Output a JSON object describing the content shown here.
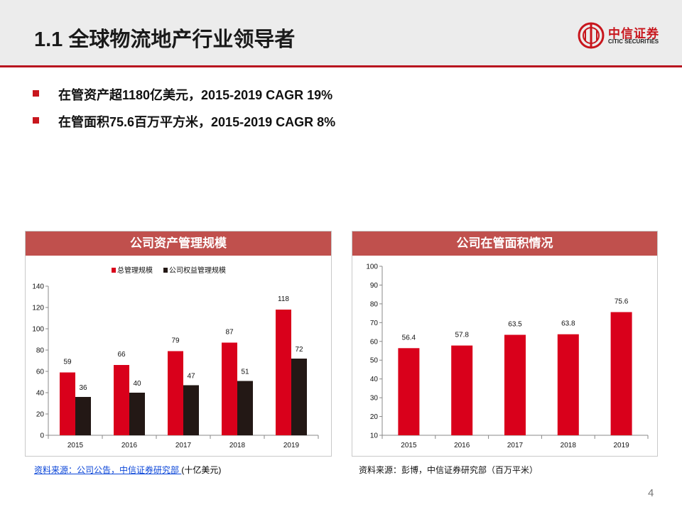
{
  "header": {
    "title": "1.1 全球物流地产行业领导者",
    "logo_cn": "中信证券",
    "logo_en": "CITIC SECURITIES",
    "accent_color": "#c8161d"
  },
  "bullets": [
    "在管资产超1180亿美元，2015-2019 CAGR 19%",
    "在管面积75.6百万平方米，2015-2019 CAGR 8%"
  ],
  "chart_data": [
    {
      "type": "bar",
      "title": "公司资产管理规模",
      "categories": [
        "2015",
        "2016",
        "2017",
        "2018",
        "2019"
      ],
      "series": [
        {
          "name": "总管理规模",
          "values": [
            59,
            66,
            79,
            87,
            118
          ],
          "color": "#d9001b"
        },
        {
          "name": "公司权益管理规模",
          "values": [
            36,
            40,
            47,
            51,
            72
          ],
          "color": "#231815"
        }
      ],
      "ylim": [
        0,
        140
      ],
      "yticks": [
        "0",
        "20",
        "40",
        "60",
        "80",
        "100",
        "120",
        "140"
      ],
      "legend": "top",
      "grid": false
    },
    {
      "type": "bar",
      "title": "公司在管面积情况",
      "categories": [
        "2015",
        "2016",
        "2017",
        "2018",
        "2019"
      ],
      "series": [
        {
          "values": [
            56.4,
            57.8,
            63.5,
            63.8,
            75.6
          ],
          "color": "#d9001b"
        }
      ],
      "value_labels": [
        "56.4",
        "57.8",
        "63.5",
        "63.8",
        "75.6"
      ],
      "ylim": [
        10,
        100
      ],
      "yticks": [
        "10",
        "20",
        "30",
        "40",
        "50",
        "60",
        "70",
        "80",
        "90",
        "100"
      ],
      "grid": false
    }
  ],
  "sources": {
    "left_link": "资料来源：公司公告，中信证券研究部 ",
    "left_unit": "(十亿美元)",
    "right": "资料来源：彭博，中信证券研究部（百万平米）"
  },
  "page_number": "4"
}
